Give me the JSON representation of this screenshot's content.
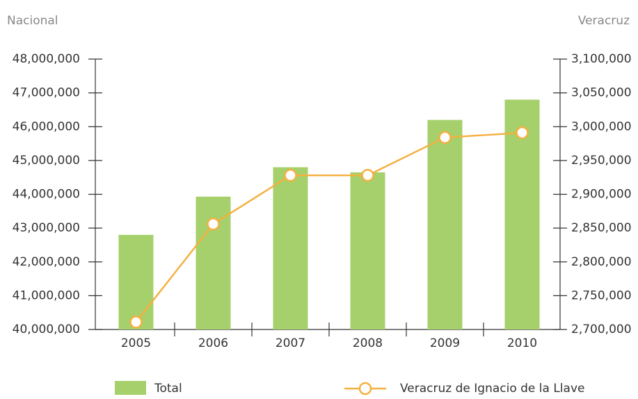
{
  "chart_data": {
    "type": "bar",
    "y_axis_title": "Nacional",
    "y2_axis_title": "Veracruz",
    "categories": [
      "2005",
      "2006",
      "2007",
      "2008",
      "2009",
      "2010"
    ],
    "series": [
      {
        "name": "Total",
        "type": "bar",
        "color": "#a6d06b",
        "values": [
          42800000,
          43930000,
          44800000,
          44650000,
          46200000,
          46800000
        ]
      },
      {
        "name": "Veracruz de Ignacio de la Llave",
        "type": "line",
        "axis": "y2",
        "color": "#f5b041",
        "values": [
          2711000,
          2856000,
          2928000,
          2928000,
          2984000,
          2991000
        ]
      }
    ],
    "ylim": [
      40000000,
      48000000
    ],
    "yticks": [
      {
        "value": 40000000,
        "label": "40,000,000"
      },
      {
        "value": 41000000,
        "label": "41,000,000"
      },
      {
        "value": 42000000,
        "label": "42,000,000"
      },
      {
        "value": 43000000,
        "label": "43,000,000"
      },
      {
        "value": 44000000,
        "label": "44,000,000"
      },
      {
        "value": 45000000,
        "label": "45,000,000"
      },
      {
        "value": 46000000,
        "label": "46,000,000"
      },
      {
        "value": 47000000,
        "label": "47,000,000"
      },
      {
        "value": 48000000,
        "label": "48,000,000"
      }
    ],
    "y2lim": [
      2700000,
      3100000
    ],
    "y2ticks": [
      {
        "value": 2700000,
        "label": "2,700,000"
      },
      {
        "value": 2750000,
        "label": "2,750,000"
      },
      {
        "value": 2800000,
        "label": "2,800,000"
      },
      {
        "value": 2850000,
        "label": "2,850,000"
      },
      {
        "value": 2900000,
        "label": "2,900,000"
      },
      {
        "value": 2950000,
        "label": "2,950,000"
      },
      {
        "value": 3000000,
        "label": "3,000,000"
      },
      {
        "value": 3050000,
        "label": "3,050,000"
      },
      {
        "value": 3100000,
        "label": "3,100,000"
      }
    ],
    "grid": false,
    "legend": "bottom"
  }
}
